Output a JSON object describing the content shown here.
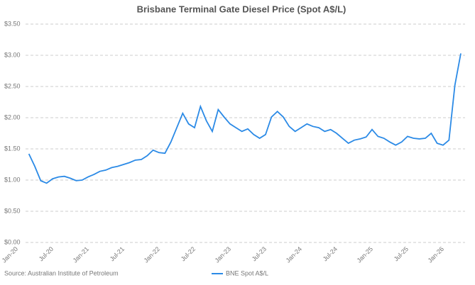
{
  "chart_data": {
    "type": "line",
    "title": "Brisbane Terminal Gate Diesel Price (Spot A$/L)",
    "source": "Source: Australian Institute of Petroleum",
    "categories": [
      "Jan-20",
      null,
      null,
      null,
      null,
      null,
      "Jul-20",
      null,
      null,
      null,
      null,
      null,
      "Jan-21",
      null,
      null,
      null,
      null,
      null,
      "Jul-21",
      null,
      null,
      null,
      null,
      null,
      "Jan-22",
      null,
      null,
      null,
      null,
      null,
      "Jul-22",
      null,
      null,
      null,
      null,
      null,
      "Jan-23",
      null,
      null,
      null,
      null,
      null,
      "Jul-23",
      null,
      null,
      null,
      null,
      null,
      "Jan-24",
      null,
      null,
      null,
      null,
      null,
      "Jul-24",
      null,
      null,
      null,
      null,
      null,
      "Jan-25",
      null,
      null,
      null,
      null,
      null,
      "Jul-25",
      null,
      null,
      null,
      null,
      null,
      "Jan-26",
      null,
      null,
      null
    ],
    "series": [
      {
        "name": "BNE Spot A$/L",
        "color": "#2b8ae6",
        "values": [
          null,
          null,
          1.42,
          1.22,
          0.99,
          0.95,
          1.02,
          1.05,
          1.06,
          1.03,
          0.99,
          1.0,
          1.05,
          1.09,
          1.14,
          1.16,
          1.2,
          1.22,
          1.25,
          1.28,
          1.32,
          1.33,
          1.39,
          1.48,
          1.44,
          1.43,
          1.61,
          1.84,
          2.07,
          1.9,
          1.84,
          2.18,
          1.95,
          1.78,
          2.13,
          2.01,
          1.9,
          1.84,
          1.78,
          1.82,
          1.73,
          1.67,
          1.73,
          2.01,
          2.1,
          2.01,
          1.86,
          1.78,
          1.84,
          1.9,
          1.86,
          1.84,
          1.78,
          1.81,
          1.75,
          1.67,
          1.59,
          1.64,
          1.66,
          1.69,
          1.81,
          1.7,
          1.67,
          1.61,
          1.56,
          1.61,
          1.7,
          1.67,
          1.66,
          1.67,
          1.75,
          1.59,
          1.56,
          1.64,
          2.52,
          3.03
        ]
      }
    ],
    "ylim": [
      0,
      3.5
    ],
    "yticks": [
      {
        "value": 0,
        "label": "$0.00"
      },
      {
        "value": 0.5,
        "label": "$0.50"
      },
      {
        "value": 1,
        "label": "$1.00"
      },
      {
        "value": 1.5,
        "label": "$1.50"
      },
      {
        "value": 2,
        "label": "$2.00"
      },
      {
        "value": 2.5,
        "label": "$2.50"
      },
      {
        "value": 3,
        "label": "$3.00"
      },
      {
        "value": 3.5,
        "label": "$3.50"
      }
    ],
    "grid": true
  }
}
